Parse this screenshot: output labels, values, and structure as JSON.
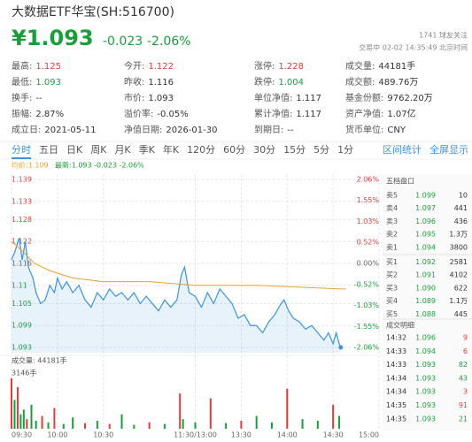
{
  "header": {
    "title": "大数据ETF华宝(SH:516700)",
    "price": "¥1.093",
    "change": "-0.023",
    "change_pct": "-2.06%",
    "followers": "1741 球友关注",
    "status": "交易中 02-02 14:35:49 北京时间"
  },
  "stats": [
    [
      {
        "label": "最高:",
        "value": "1.125",
        "color": "#e03c3c"
      },
      {
        "label": "今开:",
        "value": "1.122",
        "color": "#e03c3c"
      },
      {
        "label": "涨停:",
        "value": "1.228",
        "color": "#e03c3c"
      },
      {
        "label": "成交量:",
        "value": "44181手"
      }
    ],
    [
      {
        "label": "最低:",
        "value": "1.093",
        "color": "#1a9e3a"
      },
      {
        "label": "昨收:",
        "value": "1.116"
      },
      {
        "label": "跌停:",
        "value": "1.004",
        "color": "#1a9e3a"
      },
      {
        "label": "成交额:",
        "value": "489.76万"
      }
    ],
    [
      {
        "label": "换手:",
        "value": "--"
      },
      {
        "label": "市价:",
        "value": "1.093"
      },
      {
        "label": "单位净值:",
        "value": "1.117"
      },
      {
        "label": "基金份额:",
        "value": "9762.20万"
      }
    ],
    [
      {
        "label": "振幅:",
        "value": "2.87%"
      },
      {
        "label": "溢价率:",
        "value": "-0.05%"
      },
      {
        "label": "累计净值:",
        "value": "1.117"
      },
      {
        "label": "资产净值:",
        "value": "1.07亿"
      }
    ],
    [
      {
        "label": "成立日:",
        "value": "2021-05-11"
      },
      {
        "label": "净值日期:",
        "value": "2026-01-30"
      },
      {
        "label": "到期日:",
        "value": "--"
      },
      {
        "label": "货币单位:",
        "value": "CNY"
      }
    ]
  ],
  "tabs": [
    "分时",
    "五日",
    "日K",
    "周K",
    "月K",
    "季K",
    "年K",
    "120分",
    "60分",
    "30分",
    "15分",
    "5分",
    "1分"
  ],
  "tab_active": 0,
  "tabs_right": [
    "区间统计",
    "全屏显示"
  ],
  "chart": {
    "avg_label": "均价:1.109",
    "latest_label": "最新:1.093 -0.023 -2.06%",
    "xlim": [
      0,
      240
    ],
    "xticks": [
      {
        "value": 0,
        "label": "09:30"
      },
      {
        "value": 30,
        "label": "10:00"
      },
      {
        "value": 60,
        "label": "10:30"
      },
      {
        "value": 120,
        "label": "11:30/13:00"
      },
      {
        "value": 150,
        "label": "13:30"
      },
      {
        "value": 180,
        "label": "14:00"
      },
      {
        "value": 210,
        "label": "14:30"
      },
      {
        "value": 240,
        "label": "15:00"
      }
    ],
    "ylim": [
      1.093,
      1.139
    ],
    "yticks": [
      1.139,
      1.133,
      1.128,
      1.122,
      1.116,
      1.11,
      1.105,
      1.099,
      1.093
    ],
    "y2lim": [
      -2.06,
      2.06
    ],
    "y2ticks": [
      {
        "value": 2.06,
        "label": "2.06%"
      },
      {
        "value": 1.55,
        "label": "1.55%"
      },
      {
        "value": 1.03,
        "label": "1.03%"
      },
      {
        "value": 0.52,
        "label": "0.52%"
      },
      {
        "value": 0,
        "label": "0.00%"
      },
      {
        "value": -0.52,
        "label": "-0.52%"
      },
      {
        "value": -1.03,
        "label": "-1.03%"
      },
      {
        "value": -1.55,
        "label": "-1.55%"
      },
      {
        "value": -2.06,
        "label": "-2.06%"
      }
    ],
    "price": {
      "color": "#3b93e0",
      "x": [
        0,
        2,
        5,
        7,
        9,
        11,
        14,
        16,
        19,
        22,
        25,
        28,
        30,
        33,
        36,
        40,
        44,
        48,
        52,
        56,
        60,
        64,
        68,
        72,
        76,
        80,
        84,
        88,
        92,
        96,
        100,
        104,
        108,
        111,
        113,
        116,
        120,
        124,
        128,
        132,
        136,
        140,
        144,
        148,
        152,
        156,
        160,
        164,
        168,
        172,
        176,
        178,
        181,
        184,
        188,
        192,
        196,
        200,
        204,
        207,
        210,
        212,
        214,
        215
      ],
      "values": [
        1.117,
        1.119,
        1.123,
        1.117,
        1.122,
        1.115,
        1.112,
        1.108,
        1.105,
        1.106,
        1.11,
        1.108,
        1.112,
        1.109,
        1.111,
        1.108,
        1.11,
        1.106,
        1.104,
        1.108,
        1.106,
        1.109,
        1.107,
        1.108,
        1.106,
        1.108,
        1.105,
        1.107,
        1.105,
        1.103,
        1.106,
        1.104,
        1.106,
        1.113,
        1.115,
        1.108,
        1.107,
        1.104,
        1.108,
        1.105,
        1.109,
        1.107,
        1.105,
        1.101,
        1.102,
        1.099,
        1.099,
        1.097,
        1.1,
        1.102,
        1.105,
        1.106,
        1.103,
        1.101,
        1.1,
        1.098,
        1.099,
        1.097,
        1.095,
        1.097,
        1.094,
        1.097,
        1.094,
        1.093
      ]
    },
    "average": {
      "color": "#f0a030",
      "x": [
        0,
        3,
        8,
        15,
        25,
        40,
        60,
        90,
        120,
        160,
        215
      ],
      "values": [
        1.122,
        1.121,
        1.119,
        1.116,
        1.114,
        1.112,
        1.111,
        1.111,
        1.11,
        1.11,
        1.109
      ]
    },
    "volume_label": "成交量: 44181手",
    "volume": {
      "max_label": {
        "value": 3146,
        "label": "3146手"
      },
      "ylim": [
        0,
        3146
      ],
      "x": [
        0,
        2,
        4,
        6,
        8,
        10,
        13,
        16,
        20,
        24,
        28,
        34,
        40,
        48,
        56,
        64,
        72,
        80,
        90,
        100,
        110,
        112,
        120,
        130,
        140,
        150,
        160,
        170,
        180,
        190,
        200,
        210,
        214
      ],
      "values": [
        3146,
        1800,
        2600,
        900,
        1200,
        600,
        1500,
        500,
        800,
        400,
        1300,
        300,
        700,
        350,
        500,
        300,
        900,
        250,
        400,
        300,
        2200,
        600,
        400,
        1900,
        350,
        500,
        800,
        400,
        2500,
        600,
        500,
        1500,
        800
      ],
      "colors": [
        "#e03c3c",
        "#1a9e3a",
        "#e03c3c",
        "#1a9e3a",
        "#1a9e3a",
        "#e03c3c",
        "#1a9e3a",
        "#1a9e3a",
        "#e03c3c",
        "#1a9e3a",
        "#e03c3c",
        "#1a9e3a",
        "#1a9e3a",
        "#e03c3c",
        "#1a9e3a",
        "#e03c3c",
        "#1a9e3a",
        "#1a9e3a",
        "#e03c3c",
        "#1a9e3a",
        "#e03c3c",
        "#1a9e3a",
        "#1a9e3a",
        "#e03c3c",
        "#1a9e3a",
        "#e03c3c",
        "#1a9e3a",
        "#1a9e3a",
        "#e03c3c",
        "#1a9e3a",
        "#1a9e3a",
        "#e03c3c",
        "#1a9e3a"
      ]
    }
  },
  "order_book": {
    "title": "五档盘口",
    "rows": [
      {
        "side": "卖5",
        "price": "1.099",
        "volume": "10"
      },
      {
        "side": "卖4",
        "price": "1.097",
        "volume": "441"
      },
      {
        "side": "卖3",
        "price": "1.096",
        "volume": "436"
      },
      {
        "side": "卖2",
        "price": "1.095",
        "volume": "1.3万"
      },
      {
        "side": "卖1",
        "price": "1.094",
        "volume": "3800"
      },
      {
        "side": "买1",
        "price": "1.092",
        "volume": "2581"
      },
      {
        "side": "买2",
        "price": "1.091",
        "volume": "4102"
      },
      {
        "side": "买3",
        "price": "1.090",
        "volume": "622"
      },
      {
        "side": "买4",
        "price": "1.089",
        "volume": "1.1万"
      },
      {
        "side": "买5",
        "price": "1.088",
        "volume": "445"
      }
    ]
  },
  "trades": {
    "title": "成交明细",
    "rows": [
      {
        "time": "14:32",
        "price": "1.096",
        "volume": "9",
        "color": "#e03c3c"
      },
      {
        "time": "14:33",
        "price": "1.094",
        "volume": "6",
        "color": "#e03c3c"
      },
      {
        "time": "14:33",
        "price": "1.093",
        "volume": "82",
        "color": "#1a9e3a"
      },
      {
        "time": "14:34",
        "price": "1.093",
        "volume": "43",
        "color": "#1a9e3a"
      },
      {
        "time": "14:34",
        "price": "1.093",
        "volume": "3",
        "color": "#e03c3c"
      },
      {
        "time": "14:35",
        "price": "1.093",
        "volume": "91",
        "color": "#e03c3c"
      },
      {
        "time": "14:35",
        "price": "1.093",
        "volume": "21",
        "color": "#1a9e3a"
      }
    ]
  }
}
